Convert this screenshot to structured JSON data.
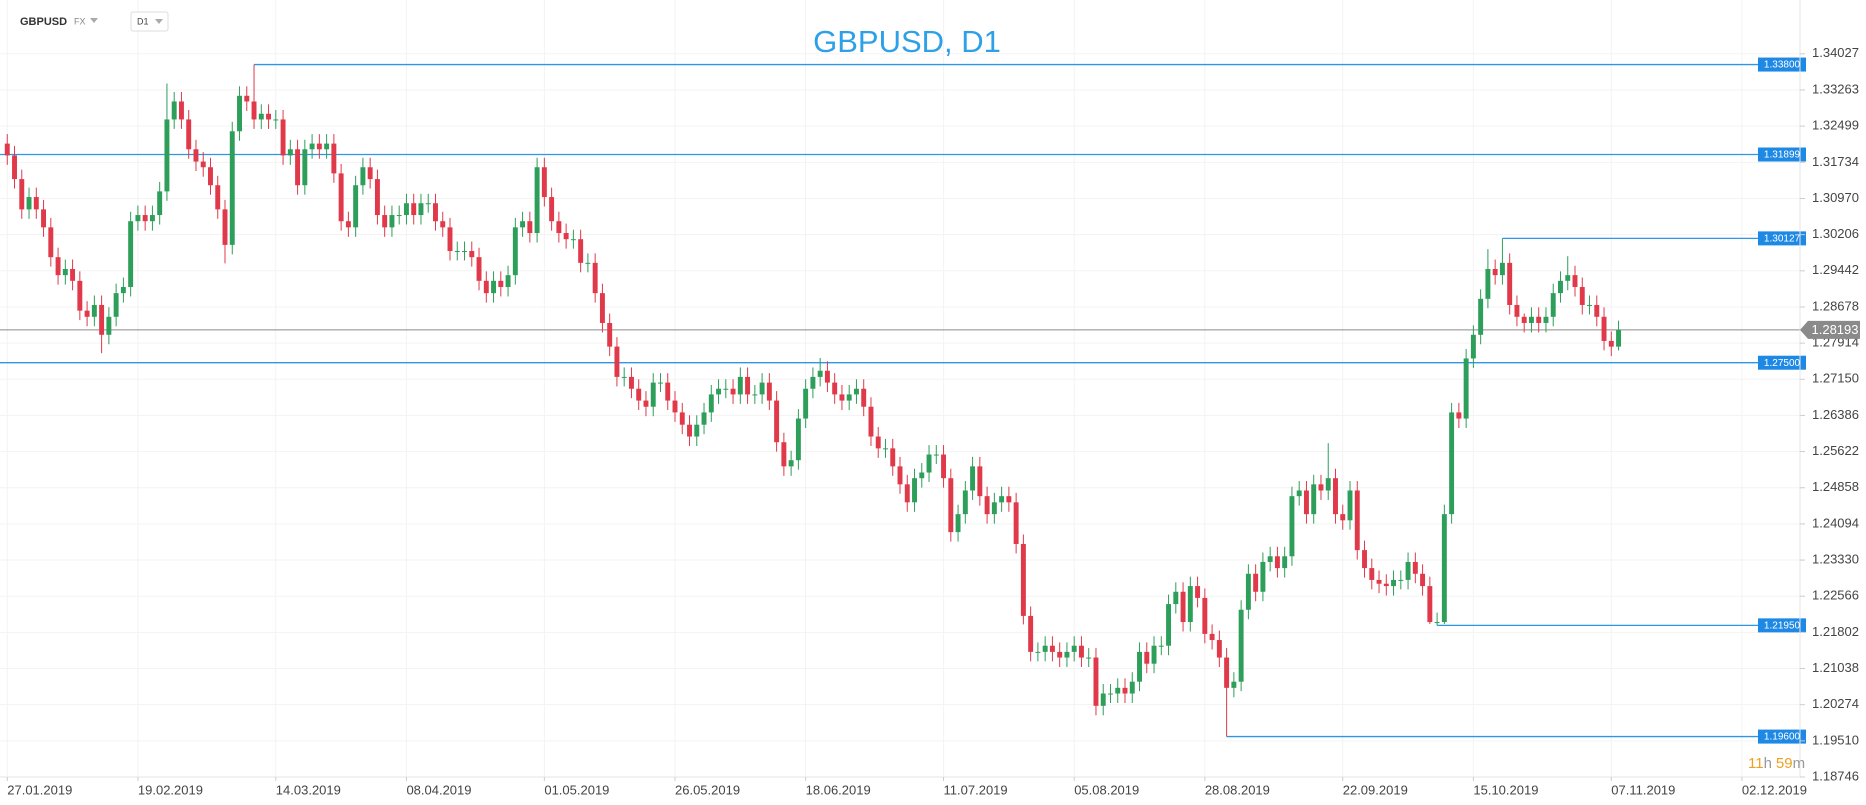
{
  "toolbar": {
    "symbol": "GBPUSD",
    "market": "FX",
    "timeframe": "D1"
  },
  "timer": [
    "11",
    "h",
    "59",
    "m"
  ],
  "chart_data": {
    "type": "candlestick",
    "title": "GBPUSD, D1",
    "colors": {
      "up": "#2e9e5b",
      "down": "#e0394a",
      "level": "#2c96e8",
      "price": "#8a8a8a"
    },
    "grid": true,
    "xlim": [
      -1,
      247
    ],
    "xticks": [
      {
        "value": 0,
        "label": "27.01.2019"
      },
      {
        "value": 18,
        "label": "19.02.2019"
      },
      {
        "value": 37,
        "label": "14.03.2019"
      },
      {
        "value": 55,
        "label": "08.04.2019"
      },
      {
        "value": 74,
        "label": "01.05.2019"
      },
      {
        "value": 92,
        "label": "26.05.2019"
      },
      {
        "value": 110,
        "label": "18.06.2019"
      },
      {
        "value": 129,
        "label": "11.07.2019"
      },
      {
        "value": 147,
        "label": "05.08.2019"
      },
      {
        "value": 165,
        "label": "28.08.2019"
      },
      {
        "value": 184,
        "label": "22.09.2019"
      },
      {
        "value": 202,
        "label": "15.10.2019"
      },
      {
        "value": 221,
        "label": "07.11.2019"
      },
      {
        "value": 239,
        "label": "02.12.2019"
      }
    ],
    "ylim": [
      1.18746,
      1.35164
    ],
    "yticks": [
      1.34027,
      1.33263,
      1.32499,
      1.31734,
      {
        "value": 1.3097,
        "label": "1.30970"
      },
      1.30206,
      1.29442,
      1.28678,
      1.27914,
      {
        "value": 1.2715,
        "label": "1.27150"
      },
      1.26386,
      1.25622,
      1.24858,
      1.24094,
      {
        "value": 1.2333,
        "label": "1.23330"
      },
      1.22566,
      1.21802,
      1.21038,
      1.20274,
      {
        "value": 1.1951,
        "label": "1.19510"
      },
      1.18746
    ],
    "levels": [
      {
        "value": 1.338,
        "label": "1.33800"
      },
      1.31899,
      1.30127,
      {
        "value": 1.275,
        "label": "1.27500"
      },
      {
        "value": 1.2195,
        "label": "1.21950"
      },
      {
        "value": 1.196,
        "label": "1.19600"
      }
    ],
    "open": [
      1.3213,
      1.3188,
      1.3138,
      1.3074,
      1.31,
      1.3074,
      1.3036,
      1.2973,
      1.2935,
      1.2948,
      1.2923,
      1.286,
      1.2847,
      1.2872,
      1.2809,
      1.2847,
      1.2897,
      1.291,
      1.3049,
      1.3062,
      1.3049,
      1.3062,
      1.3112,
      1.3264,
      1.3302,
      1.3264,
      1.3201,
      1.3175,
      1.3163,
      1.3125,
      1.3074,
      1.2999,
      1.3239,
      1.3314,
      1.3302,
      1.3264,
      1.3276,
      1.3264,
      1.3264,
      1.3188,
      1.3201,
      1.3125,
      1.3201,
      1.3213,
      1.3201,
      1.3213,
      1.315,
      1.3049,
      1.3036,
      1.3125,
      1.3163,
      1.3138,
      1.3062,
      1.3036,
      1.3062,
      1.3062,
      1.3087,
      1.3062,
      1.3087,
      1.3087,
      1.3049,
      1.3036,
      1.2986,
      1.2986,
      1.2986,
      1.2973,
      1.2923,
      1.2897,
      1.2923,
      1.291,
      1.2935,
      1.3036,
      1.3049,
      1.3024,
      1.3163,
      1.31,
      1.3049,
      1.3024,
      1.3011,
      1.3011,
      1.2961,
      1.2961,
      1.2897,
      1.2834,
      1.2784,
      1.272,
      1.272,
      1.2695,
      1.267,
      1.2657,
      1.2708,
      1.2708,
      1.267,
      1.2645,
      1.2619,
      1.2594,
      1.2619,
      1.2645,
      1.2683,
      1.2695,
      1.2695,
      1.2683,
      1.272,
      1.2683,
      1.2683,
      1.2708,
      1.267,
      1.2582,
      1.2531,
      1.2544,
      1.2632,
      1.2695,
      1.272,
      1.2733,
      1.2708,
      1.2683,
      1.267,
      1.2683,
      1.2695,
      1.2657,
      1.2594,
      1.2569,
      1.2569,
      1.2531,
      1.2493,
      1.2455,
      1.2506,
      1.2518,
      1.2556,
      1.2556,
      1.2506,
      1.2392,
      1.243,
      1.248,
      1.2531,
      1.2468,
      1.243,
      1.2455,
      1.2468,
      1.2455,
      1.2367,
      1.2215,
      1.2139,
      1.2139,
      1.2152,
      1.2139,
      1.2127,
      1.2139,
      1.2152,
      1.2127,
      1.2127,
      1.2025,
      1.2051,
      1.2051,
      1.2063,
      1.2051,
      1.2076,
      1.2139,
      1.2114,
      1.2152,
      1.2152,
      1.224,
      1.2266,
      1.2202,
      1.2278,
      1.2253,
      1.2177,
      1.2164,
      1.2127,
      1.2063,
      1.2076,
      1.2228,
      1.2304,
      1.2266,
      1.2329,
      1.2341,
      1.2316,
      1.2341,
      1.2468,
      1.248,
      1.243,
      1.2493,
      1.248,
      1.2506,
      1.243,
      1.2417,
      1.248,
      1.2354,
      1.2316,
      1.2291,
      1.2283,
      1.2278,
      1.2291,
      1.2291,
      1.2329,
      1.2304,
      1.2278,
      1.2202,
      1.2202,
      1.243,
      1.2645,
      1.2632,
      1.2759,
      1.2809,
      1.2885,
      1.2948,
      1.2935,
      1.2961,
      1.2872,
      1.2847,
      1.2834,
      1.2847,
      1.2834,
      1.2847,
      1.2897,
      1.2923,
      1.2935,
      1.291,
      1.2872,
      1.2872,
      1.2847,
      1.2796,
      1.2784
    ],
    "high": [
      1.3233,
      1.3208,
      1.3158,
      1.312,
      1.312,
      1.3094,
      1.3056,
      1.2993,
      1.2968,
      1.2968,
      1.2943,
      1.288,
      1.2892,
      1.2892,
      1.2867,
      1.2917,
      1.293,
      1.3069,
      1.3082,
      1.3082,
      1.3082,
      1.3132,
      1.334,
      1.3322,
      1.3322,
      1.3284,
      1.3221,
      1.3195,
      1.3183,
      1.3145,
      1.3094,
      1.3259,
      1.3334,
      1.3334,
      1.338,
      1.3296,
      1.3296,
      1.3284,
      1.3284,
      1.3221,
      1.3221,
      1.3221,
      1.3233,
      1.3233,
      1.3233,
      1.3233,
      1.317,
      1.3069,
      1.3145,
      1.3183,
      1.3183,
      1.3158,
      1.3082,
      1.3082,
      1.3082,
      1.3107,
      1.3107,
      1.3107,
      1.3107,
      1.3107,
      1.3069,
      1.3056,
      1.3006,
      1.3006,
      1.3006,
      1.2993,
      1.2943,
      1.2943,
      1.2943,
      1.2955,
      1.3056,
      1.3069,
      1.3069,
      1.3183,
      1.3183,
      1.312,
      1.3069,
      1.3044,
      1.3031,
      1.3031,
      1.2981,
      1.2981,
      1.2917,
      1.2854,
      1.2804,
      1.274,
      1.274,
      1.2715,
      1.269,
      1.2728,
      1.2728,
      1.2728,
      1.269,
      1.2665,
      1.2639,
      1.2639,
      1.2665,
      1.2703,
      1.2715,
      1.2715,
      1.2715,
      1.274,
      1.274,
      1.2703,
      1.2728,
      1.2728,
      1.269,
      1.2602,
      1.2564,
      1.2652,
      1.2715,
      1.274,
      1.276,
      1.2753,
      1.2728,
      1.2703,
      1.2703,
      1.2715,
      1.2715,
      1.2677,
      1.2614,
      1.2589,
      1.2589,
      1.2551,
      1.2513,
      1.2526,
      1.2538,
      1.2576,
      1.2576,
      1.2576,
      1.2526,
      1.245,
      1.25,
      1.2551,
      1.2551,
      1.2488,
      1.2475,
      1.2488,
      1.2488,
      1.2475,
      1.2387,
      1.2235,
      1.2159,
      1.2172,
      1.2172,
      1.2159,
      1.2159,
      1.2172,
      1.2172,
      1.2147,
      1.2147,
      1.2071,
      1.2071,
      1.2083,
      1.2083,
      1.2096,
      1.2159,
      1.2159,
      1.2172,
      1.2172,
      1.226,
      1.2286,
      1.2286,
      1.2298,
      1.2298,
      1.2273,
      1.2197,
      1.2184,
      1.2147,
      1.2096,
      1.2248,
      1.2324,
      1.2324,
      1.2349,
      1.2361,
      1.2361,
      1.2361,
      1.2488,
      1.25,
      1.25,
      1.2513,
      1.2513,
      1.258,
      1.2526,
      1.245,
      1.25,
      1.25,
      1.2374,
      1.2336,
      1.2311,
      1.2303,
      1.2311,
      1.2311,
      1.2349,
      1.2349,
      1.2324,
      1.2298,
      1.2222,
      1.245,
      1.2665,
      1.2665,
      1.2779,
      1.2829,
      1.2905,
      1.299,
      1.2968,
      1.30127,
      1.2981,
      1.2892,
      1.2854,
      1.2867,
      1.2867,
      1.2867,
      1.2917,
      1.2943,
      1.2975,
      1.2955,
      1.293,
      1.2892,
      1.2892,
      1.2867,
      1.2816,
      1.2839
    ],
    "low": [
      1.3168,
      1.3118,
      1.3054,
      1.3054,
      1.3054,
      1.3016,
      1.2953,
      1.2915,
      1.2915,
      1.2903,
      1.284,
      1.2827,
      1.2827,
      1.277,
      1.2789,
      1.2827,
      1.2877,
      1.289,
      1.3029,
      1.3029,
      1.3029,
      1.3042,
      1.3092,
      1.3244,
      1.3244,
      1.3181,
      1.3155,
      1.3143,
      1.3105,
      1.3054,
      1.296,
      1.2979,
      1.3219,
      1.3282,
      1.3244,
      1.3244,
      1.3244,
      1.3244,
      1.3168,
      1.3168,
      1.3105,
      1.3105,
      1.3181,
      1.3181,
      1.3181,
      1.313,
      1.3029,
      1.3016,
      1.3016,
      1.3105,
      1.3118,
      1.3042,
      1.3016,
      1.3016,
      1.3042,
      1.3042,
      1.3042,
      1.3042,
      1.3067,
      1.3029,
      1.3016,
      1.2966,
      1.2966,
      1.2966,
      1.2953,
      1.2903,
      1.2877,
      1.2877,
      1.289,
      1.289,
      1.2915,
      1.3016,
      1.3004,
      1.3004,
      1.308,
      1.3029,
      1.3004,
      1.2991,
      1.2991,
      1.2941,
      1.2941,
      1.2877,
      1.2814,
      1.2764,
      1.27,
      1.27,
      1.2675,
      1.265,
      1.2637,
      1.2637,
      1.2688,
      1.265,
      1.2625,
      1.2599,
      1.2574,
      1.2574,
      1.2599,
      1.2625,
      1.2663,
      1.2675,
      1.2663,
      1.2663,
      1.2663,
      1.2663,
      1.2663,
      1.265,
      1.2562,
      1.2511,
      1.2511,
      1.2524,
      1.2612,
      1.2675,
      1.27,
      1.2688,
      1.2663,
      1.265,
      1.265,
      1.2663,
      1.2637,
      1.2574,
      1.2549,
      1.2549,
      1.2511,
      1.2473,
      1.2435,
      1.2435,
      1.2486,
      1.2498,
      1.2536,
      1.2486,
      1.2372,
      1.2372,
      1.241,
      1.246,
      1.2448,
      1.241,
      1.241,
      1.2435,
      1.2435,
      1.2347,
      1.2197,
      1.2119,
      1.2119,
      1.2119,
      1.2119,
      1.2107,
      1.2107,
      1.2119,
      1.2107,
      1.2107,
      1.2005,
      1.2005,
      1.2031,
      1.2031,
      1.2031,
      1.2031,
      1.2056,
      1.2094,
      1.2094,
      1.2132,
      1.2132,
      1.222,
      1.2182,
      1.2182,
      1.2233,
      1.2157,
      1.2144,
      1.2107,
      1.196,
      1.2043,
      1.2056,
      1.2208,
      1.2246,
      1.2246,
      1.2309,
      1.2296,
      1.2296,
      1.2321,
      1.2448,
      1.241,
      1.241,
      1.246,
      1.246,
      1.241,
      1.2397,
      1.2397,
      1.2334,
      1.2296,
      1.2271,
      1.2263,
      1.2258,
      1.2258,
      1.2271,
      1.2271,
      1.2284,
      1.2258,
      1.2198,
      1.2195,
      1.2198,
      1.241,
      1.2612,
      1.2612,
      1.2739,
      1.2789,
      1.2865,
      1.2915,
      1.2915,
      1.2852,
      1.2827,
      1.2814,
      1.2814,
      1.2814,
      1.2814,
      1.2827,
      1.2877,
      1.2903,
      1.289,
      1.2852,
      1.2852,
      1.2827,
      1.2776,
      1.2764,
      1.2776
    ],
    "close": [
      1.3188,
      1.3138,
      1.3074,
      1.31,
      1.3074,
      1.3036,
      1.2973,
      1.2935,
      1.2948,
      1.2923,
      1.286,
      1.2847,
      1.2872,
      1.2809,
      1.2847,
      1.2897,
      1.291,
      1.3049,
      1.3062,
      1.3049,
      1.3062,
      1.3112,
      1.3264,
      1.3302,
      1.3264,
      1.3201,
      1.3175,
      1.3163,
      1.3125,
      1.3074,
      1.2999,
      1.3239,
      1.3314,
      1.3302,
      1.3264,
      1.3276,
      1.3264,
      1.3264,
      1.3188,
      1.3201,
      1.3125,
      1.3201,
      1.3213,
      1.3201,
      1.3213,
      1.315,
      1.3049,
      1.3036,
      1.3125,
      1.3163,
      1.3138,
      1.3062,
      1.3036,
      1.3062,
      1.3062,
      1.3087,
      1.3062,
      1.3087,
      1.3087,
      1.3049,
      1.3036,
      1.2986,
      1.2986,
      1.2986,
      1.2973,
      1.2923,
      1.2897,
      1.2923,
      1.291,
      1.2935,
      1.3036,
      1.3049,
      1.3024,
      1.3163,
      1.31,
      1.3049,
      1.3024,
      1.3011,
      1.3011,
      1.2961,
      1.2961,
      1.2897,
      1.2834,
      1.2784,
      1.272,
      1.272,
      1.2695,
      1.267,
      1.2657,
      1.2708,
      1.2708,
      1.267,
      1.2645,
      1.2619,
      1.2594,
      1.2619,
      1.2645,
      1.2683,
      1.2695,
      1.2695,
      1.2683,
      1.272,
      1.2683,
      1.2683,
      1.2708,
      1.267,
      1.2582,
      1.2531,
      1.2544,
      1.2632,
      1.2695,
      1.272,
      1.2733,
      1.2708,
      1.2683,
      1.267,
      1.2683,
      1.2695,
      1.2657,
      1.2594,
      1.2569,
      1.2569,
      1.2531,
      1.2493,
      1.2455,
      1.2506,
      1.2518,
      1.2556,
      1.2556,
      1.2506,
      1.2392,
      1.243,
      1.248,
      1.2531,
      1.2468,
      1.243,
      1.2455,
      1.2468,
      1.2455,
      1.2367,
      1.2215,
      1.2139,
      1.2139,
      1.2152,
      1.2139,
      1.2127,
      1.2139,
      1.2152,
      1.2127,
      1.2127,
      1.2025,
      1.2051,
      1.2051,
      1.2063,
      1.2051,
      1.2076,
      1.2139,
      1.2114,
      1.2152,
      1.2152,
      1.224,
      1.2266,
      1.2202,
      1.2278,
      1.2253,
      1.2177,
      1.2164,
      1.2127,
      1.2063,
      1.2076,
      1.2228,
      1.2304,
      1.2266,
      1.2329,
      1.2341,
      1.2316,
      1.2341,
      1.2468,
      1.248,
      1.243,
      1.2493,
      1.248,
      1.2506,
      1.243,
      1.2417,
      1.248,
      1.2354,
      1.2316,
      1.2291,
      1.2283,
      1.2278,
      1.2291,
      1.2291,
      1.2329,
      1.2304,
      1.2278,
      1.2202,
      1.2202,
      1.243,
      1.2645,
      1.2632,
      1.2759,
      1.2809,
      1.2885,
      1.2948,
      1.2935,
      1.2961,
      1.2872,
      1.2847,
      1.2834,
      1.2847,
      1.2834,
      1.2847,
      1.2897,
      1.2923,
      1.2935,
      1.291,
      1.2872,
      1.2872,
      1.2847,
      1.2796,
      1.2784,
      1.28193
    ]
  }
}
